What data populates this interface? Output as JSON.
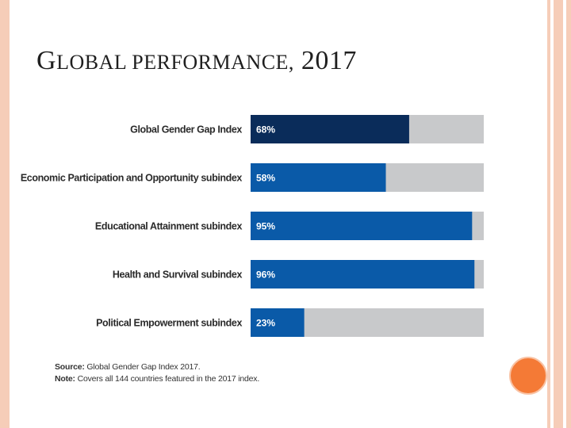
{
  "slide": {
    "title_first": "G",
    "title_rest": "lobal performance,",
    "title_year": "2017"
  },
  "colors": {
    "bar_highlight": "#0a2c5a",
    "bar_primary": "#0a5aa8",
    "bar_track": "#c8c9cb",
    "accent_dot": "#f47a36"
  },
  "chart_data": {
    "type": "bar",
    "orientation": "horizontal",
    "title": "",
    "categories": [
      "Global Gender Gap Index",
      "Economic Participation and Opportunity subindex",
      "Educational Attainment subindex",
      "Health and Survival subindex",
      "Political Empowerment subindex"
    ],
    "values": [
      68,
      58,
      95,
      96,
      23
    ],
    "value_labels": [
      "68%",
      "58%",
      "95%",
      "96%",
      "23%"
    ],
    "xlim": [
      0,
      100
    ],
    "grid": false,
    "source_label": "Source:",
    "source_text": "Global Gender Gap Index 2017.",
    "note_label": "Note:",
    "note_text": "Covers all 144 countries featured in the 2017 index."
  }
}
